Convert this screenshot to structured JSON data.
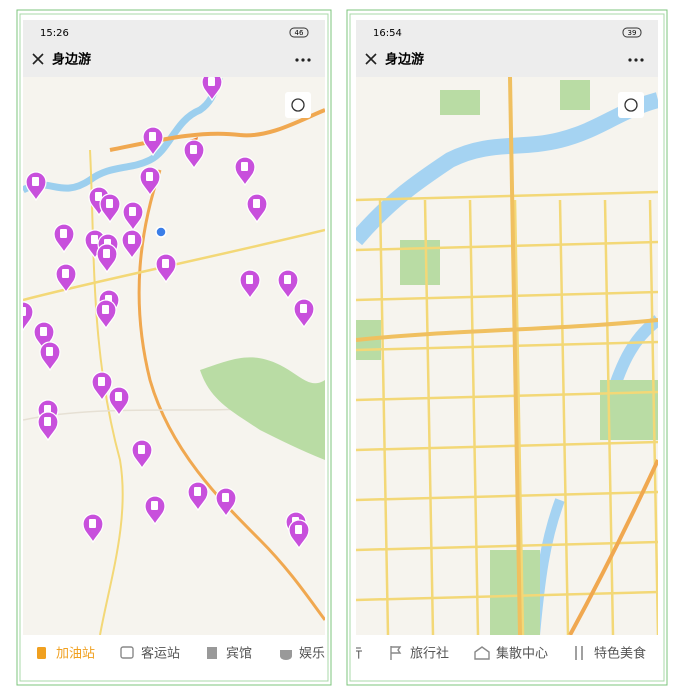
{
  "left": {
    "status": {
      "time": "15:26",
      "battery": 46
    },
    "header": {
      "title": "身边游"
    },
    "tabs": [
      "加油站",
      "客运站",
      "宾馆",
      "娱乐"
    ]
  },
  "right": {
    "status": {
      "time": "16:54",
      "battery": 39
    },
    "header": {
      "title": "身边游"
    },
    "tabs": [
      "亓",
      "旅行社",
      "集散中心",
      "特色美食"
    ]
  }
}
